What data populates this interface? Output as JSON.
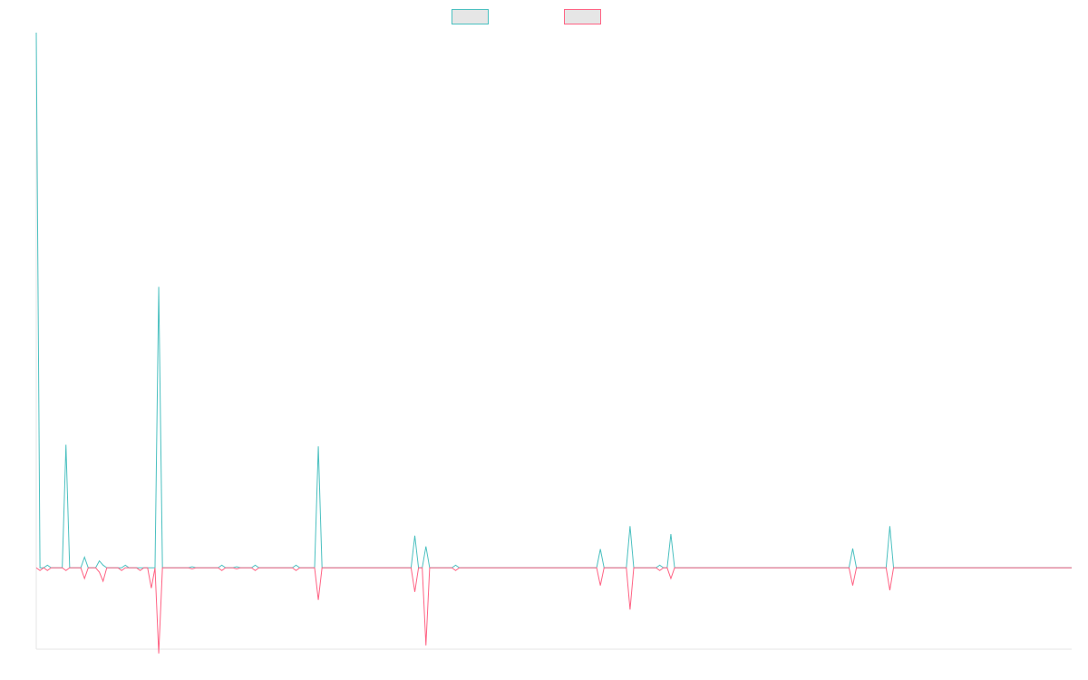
{
  "chart_data": {
    "type": "line",
    "title": "",
    "xlabel": "",
    "ylabel": "",
    "grid": false,
    "legend": {
      "placement": "top-center",
      "entries": [
        "",
        ""
      ]
    },
    "y_range": [
      -152,
      1000
    ],
    "baseline": 0,
    "series": [
      {
        "color": "#4bc0c0",
        "fill": "#e6e6e6",
        "values": [
          1000,
          0,
          0,
          5,
          0,
          0,
          0,
          0,
          230,
          0,
          0,
          0,
          0,
          20,
          0,
          0,
          0,
          13,
          5,
          0,
          0,
          0,
          0,
          0,
          5,
          0,
          0,
          0,
          0,
          0,
          0,
          0,
          0,
          525,
          0,
          0,
          0,
          0,
          0,
          0,
          0,
          0,
          2,
          0,
          0,
          0,
          0,
          0,
          0,
          0,
          5,
          0,
          0,
          0,
          2,
          0,
          0,
          0,
          0,
          5,
          0,
          0,
          0,
          0,
          0,
          0,
          0,
          0,
          0,
          0,
          5,
          0,
          0,
          0,
          0,
          0,
          227,
          0,
          0,
          0,
          0,
          0,
          0,
          0,
          0,
          0,
          0,
          0,
          0,
          0,
          0,
          0,
          0,
          0,
          0,
          0,
          0,
          0,
          0,
          0,
          0,
          0,
          60,
          0,
          0,
          40,
          0,
          0,
          0,
          0,
          0,
          0,
          0,
          5,
          0,
          0,
          0,
          0,
          0,
          0,
          0,
          0,
          0,
          0,
          0,
          0,
          0,
          0,
          0,
          0,
          0,
          0,
          0,
          0,
          0,
          0,
          0,
          0,
          0,
          0,
          0,
          0,
          0,
          0,
          0,
          0,
          0,
          0,
          0,
          0,
          0,
          0,
          35,
          0,
          0,
          0,
          0,
          0,
          0,
          0,
          78,
          0,
          0,
          0,
          0,
          0,
          0,
          0,
          5,
          0,
          0,
          63,
          0,
          0,
          0,
          0,
          0,
          0,
          0,
          0,
          0,
          0,
          0,
          0,
          0,
          0,
          0,
          0,
          0,
          0,
          0,
          0,
          0,
          0,
          0,
          0,
          0,
          0,
          0,
          0,
          0,
          0,
          0,
          0,
          0,
          0,
          0,
          0,
          0,
          0,
          0,
          0,
          0,
          0,
          0,
          0,
          0,
          0,
          0,
          0,
          36,
          0,
          0,
          0,
          0,
          0,
          0,
          0,
          0,
          0,
          78,
          0,
          0,
          0,
          0,
          0,
          0,
          0,
          0,
          0,
          0,
          0,
          0,
          0,
          0,
          0,
          0,
          0,
          0,
          0,
          0,
          0,
          0,
          0,
          0,
          0,
          0,
          0,
          0,
          0,
          0,
          0,
          0,
          0,
          0,
          0,
          0,
          0,
          0,
          0,
          0,
          0,
          0,
          0,
          0,
          0,
          0,
          0,
          0,
          0
        ]
      },
      {
        "color": "#ff6384",
        "fill": "#e6e6e6",
        "values": [
          0,
          -5,
          0,
          -5,
          0,
          0,
          0,
          0,
          -5,
          0,
          0,
          0,
          0,
          -20,
          0,
          0,
          0,
          -8,
          -25,
          0,
          0,
          0,
          0,
          -5,
          0,
          0,
          0,
          0,
          -5,
          0,
          0,
          -38,
          0,
          -160,
          0,
          0,
          0,
          0,
          0,
          0,
          0,
          0,
          -2,
          0,
          0,
          0,
          0,
          0,
          0,
          0,
          -5,
          0,
          0,
          0,
          -2,
          0,
          0,
          0,
          0,
          -5,
          0,
          0,
          0,
          0,
          0,
          0,
          0,
          0,
          0,
          0,
          -5,
          0,
          0,
          0,
          0,
          0,
          -60,
          0,
          0,
          0,
          0,
          0,
          0,
          0,
          0,
          0,
          0,
          0,
          0,
          0,
          0,
          0,
          0,
          0,
          0,
          0,
          0,
          0,
          0,
          0,
          0,
          0,
          -45,
          0,
          0,
          -145,
          0,
          0,
          0,
          0,
          0,
          0,
          0,
          -5,
          0,
          0,
          0,
          0,
          0,
          0,
          0,
          0,
          0,
          0,
          0,
          0,
          0,
          0,
          0,
          0,
          0,
          0,
          0,
          0,
          0,
          0,
          0,
          0,
          0,
          0,
          0,
          0,
          0,
          0,
          0,
          0,
          0,
          0,
          0,
          0,
          0,
          0,
          -33,
          0,
          0,
          0,
          0,
          0,
          0,
          0,
          -78,
          0,
          0,
          0,
          0,
          0,
          0,
          0,
          -5,
          0,
          0,
          -20,
          0,
          0,
          0,
          0,
          0,
          0,
          0,
          0,
          0,
          0,
          0,
          0,
          0,
          0,
          0,
          0,
          0,
          0,
          0,
          0,
          0,
          0,
          0,
          0,
          0,
          0,
          0,
          0,
          0,
          0,
          0,
          0,
          0,
          0,
          0,
          0,
          0,
          0,
          0,
          0,
          0,
          0,
          0,
          0,
          0,
          0,
          0,
          0,
          -33,
          0,
          0,
          0,
          0,
          0,
          0,
          0,
          0,
          0,
          -42,
          0,
          0,
          0,
          0,
          0,
          0,
          0,
          0,
          0,
          0,
          0,
          0,
          0,
          0,
          0,
          0,
          0,
          0,
          0,
          0,
          0,
          0,
          0,
          0,
          0,
          0,
          0,
          0,
          0,
          0,
          0,
          0,
          0,
          0,
          0,
          0,
          0,
          0,
          0,
          0,
          0,
          0,
          0,
          0,
          0,
          0,
          0,
          0,
          0
        ]
      }
    ]
  }
}
